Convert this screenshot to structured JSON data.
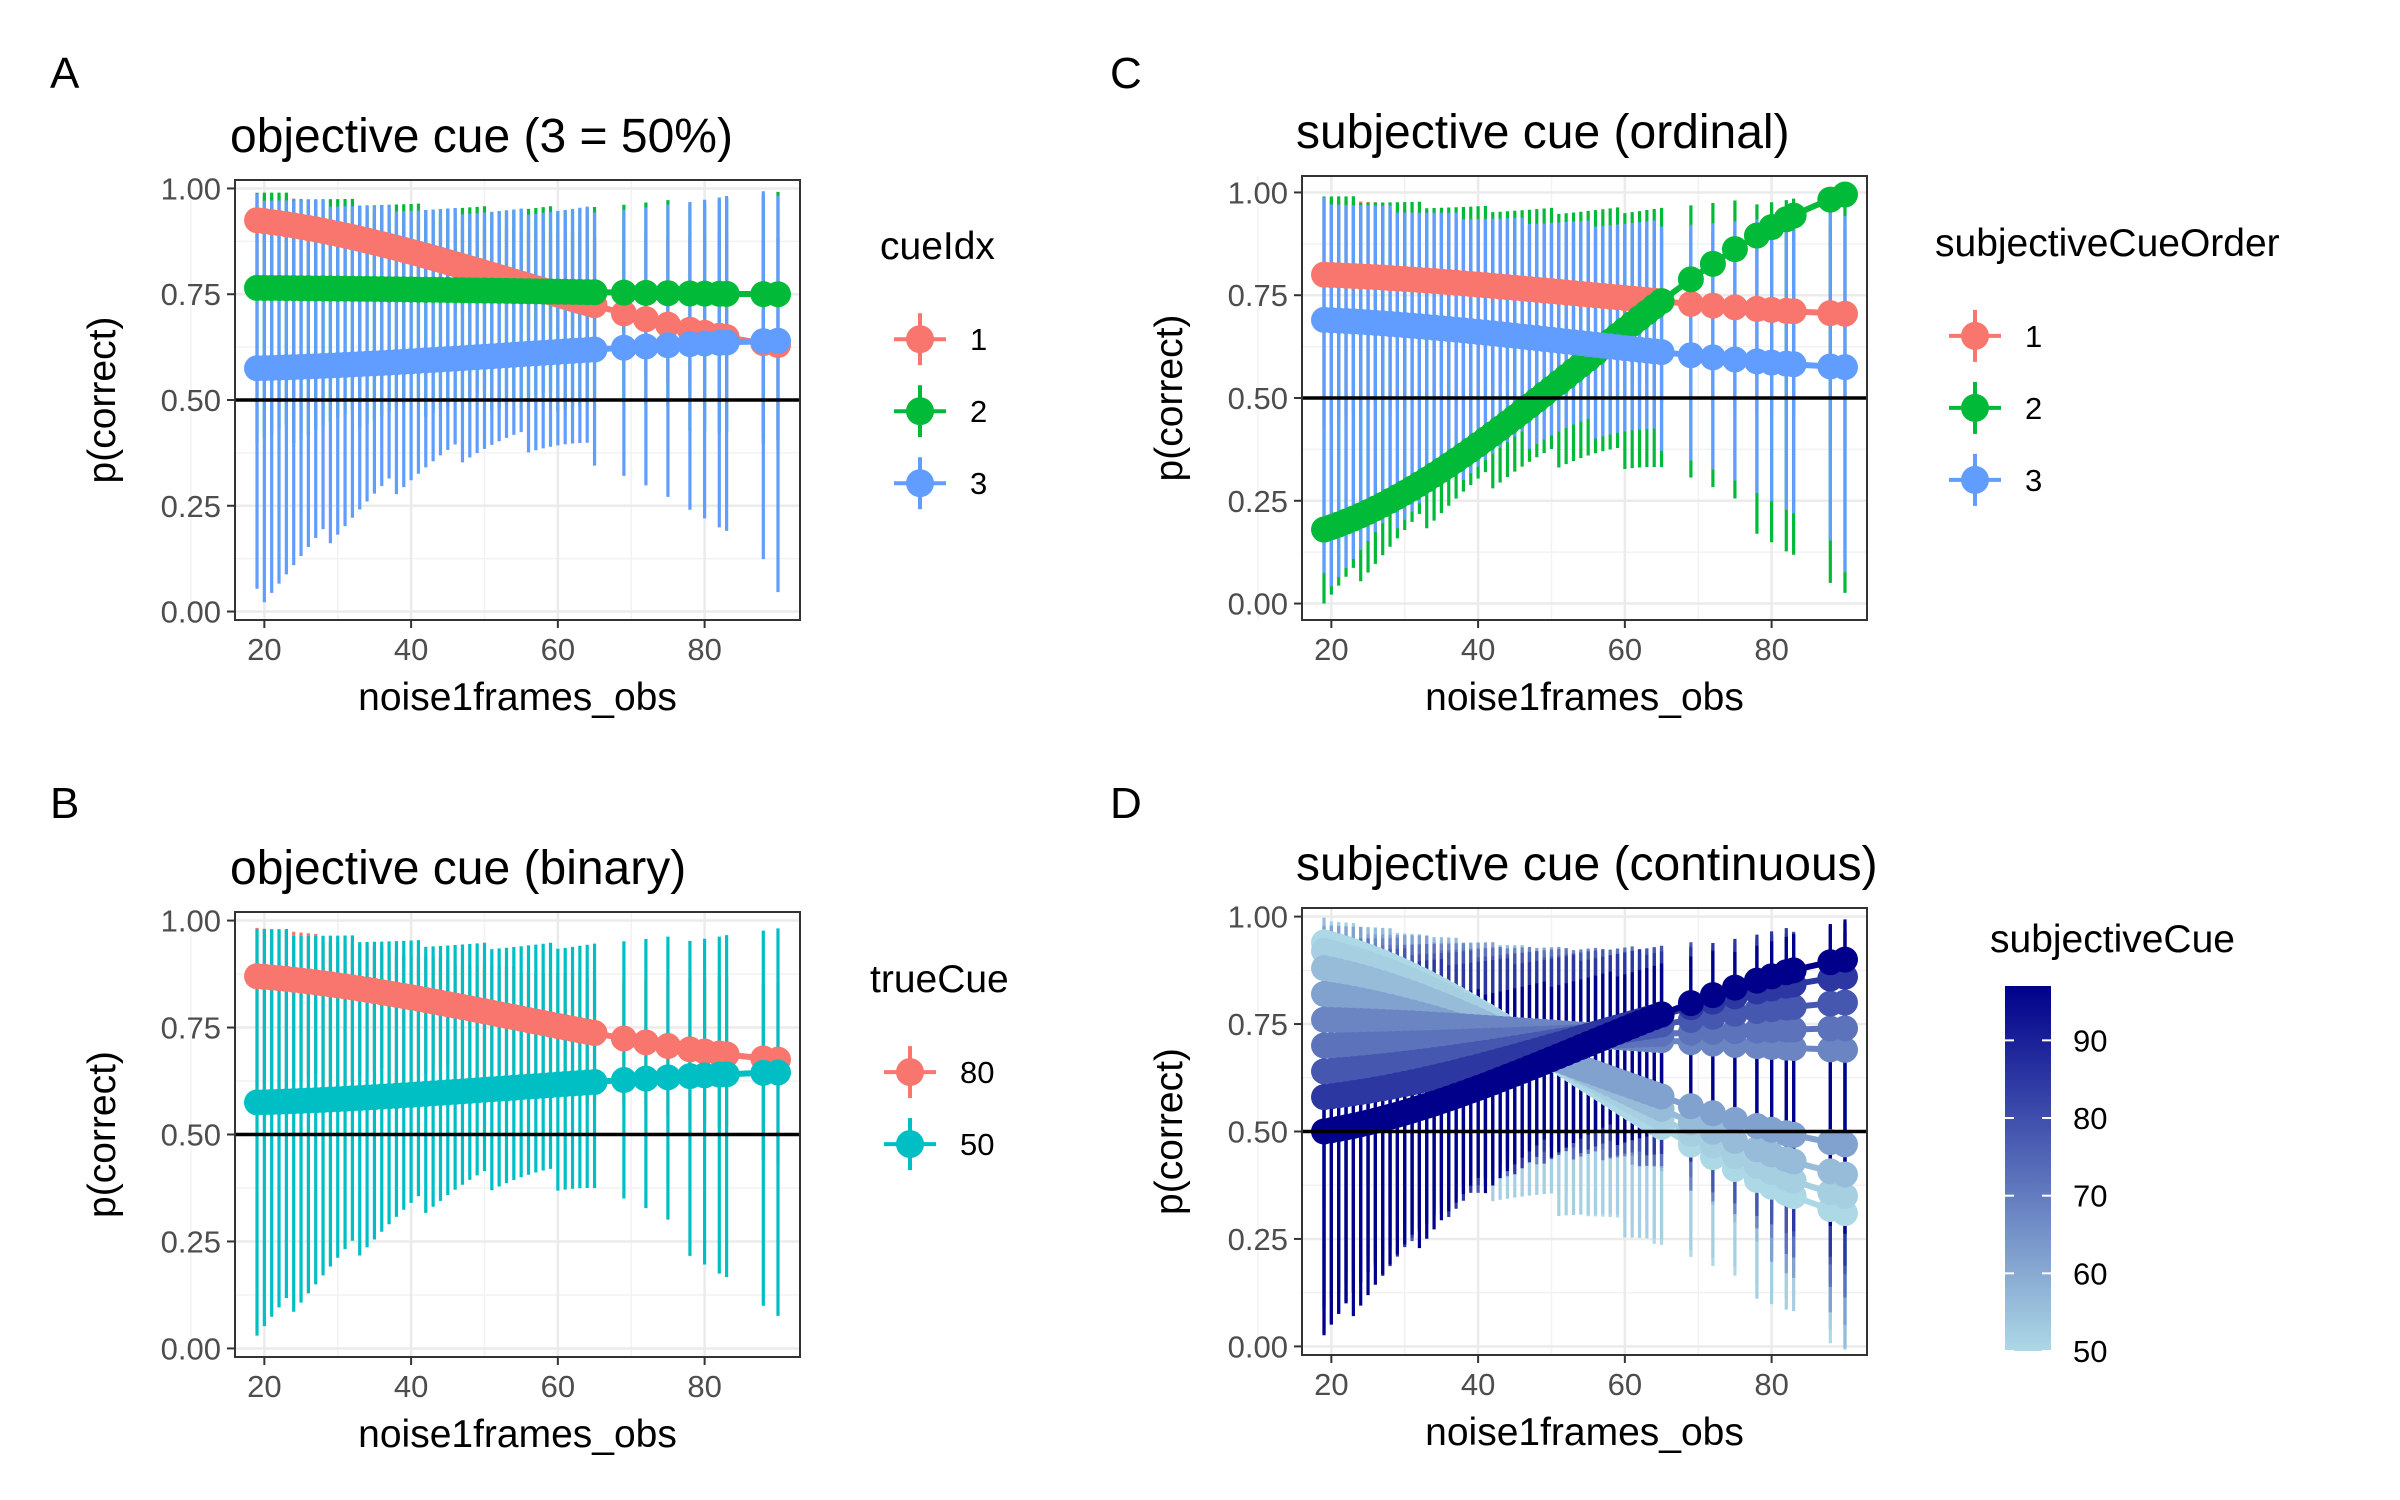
{
  "chart_data": [
    {
      "panel": "A",
      "type": "scatter",
      "title": "objective cue (3 = 50%)",
      "xlabel": "noise1frames_obs",
      "ylabel": "p(correct)",
      "xlim": [
        16,
        93
      ],
      "ylim": [
        -0.02,
        1.02
      ],
      "xticks": [
        20,
        40,
        60,
        80
      ],
      "yticks": [
        "0.00",
        "0.25",
        "0.50",
        "0.75",
        "1.00"
      ],
      "hline": 0.5,
      "x_observed": [
        19,
        90
      ],
      "grid": true,
      "legend": {
        "title": "cueIdx",
        "position": "right",
        "type": "discrete"
      },
      "series": [
        {
          "name": "1",
          "color": "#F8766D",
          "x_start": 19,
          "x_end": 90,
          "y_start": 0.925,
          "y_end": 0.63,
          "ci_upper_start": 0.99,
          "ci_upper_end": 0.89,
          "ci_lower_start": 0.78,
          "ci_lower_end": 0.4
        },
        {
          "name": "2",
          "color": "#00BA38",
          "x_start": 19,
          "x_end": 90,
          "y_start": 0.765,
          "y_end": 0.75,
          "ci_upper_start": 0.99,
          "ci_upper_end": 0.99,
          "ci_lower_start": 0.4,
          "ci_lower_end": 0.4
        },
        {
          "name": "3",
          "color": "#619CFF",
          "x_start": 19,
          "x_end": 90,
          "y_start": 0.575,
          "y_end": 0.64,
          "ci_upper_start": 0.98,
          "ci_upper_end": 0.99,
          "ci_lower_start": 0.03,
          "ci_lower_end": 0.07
        }
      ]
    },
    {
      "panel": "B",
      "type": "scatter",
      "title": "objective cue (binary)",
      "xlabel": "noise1frames_obs",
      "ylabel": "p(correct)",
      "xlim": [
        16,
        93
      ],
      "ylim": [
        -0.02,
        1.02
      ],
      "xticks": [
        20,
        40,
        60,
        80
      ],
      "yticks": [
        "0.00",
        "0.25",
        "0.50",
        "0.75",
        "1.00"
      ],
      "hline": 0.5,
      "x_observed": [
        19,
        90
      ],
      "grid": true,
      "legend": {
        "title": "trueCue",
        "position": "right",
        "type": "discrete"
      },
      "series": [
        {
          "name": "80",
          "color": "#F8766D",
          "x_start": 19,
          "x_end": 90,
          "y_start": 0.87,
          "y_end": 0.675,
          "ci_upper_start": 0.99,
          "ci_upper_end": 0.86,
          "ci_lower_start": 0.6,
          "ci_lower_end": 0.45
        },
        {
          "name": "50",
          "color": "#00BFC4",
          "x_start": 19,
          "x_end": 90,
          "y_start": 0.575,
          "y_end": 0.645,
          "ci_upper_start": 0.98,
          "ci_upper_end": 0.98,
          "ci_lower_start": 0.03,
          "ci_lower_end": 0.07
        }
      ]
    },
    {
      "panel": "C",
      "type": "scatter",
      "title": "subjective cue (ordinal)",
      "xlabel": "noise1frames_obs",
      "ylabel": "p(correct)",
      "xlim": [
        16,
        93
      ],
      "ylim": [
        -0.04,
        1.04
      ],
      "xticks": [
        20,
        40,
        60,
        80
      ],
      "yticks": [
        "0.00",
        "0.25",
        "0.50",
        "0.75",
        "1.00"
      ],
      "hline": 0.5,
      "x_observed": [
        19,
        90
      ],
      "grid": true,
      "legend": {
        "title": "subjectiveCueOrder",
        "position": "right",
        "type": "discrete"
      },
      "series": [
        {
          "name": "1",
          "color": "#F8766D",
          "x_start": 19,
          "x_end": 90,
          "y_start": 0.8,
          "y_end": 0.705,
          "ci_upper_start": 0.99,
          "ci_upper_end": 0.92,
          "ci_lower_start": 0.45,
          "ci_lower_end": 0.4
        },
        {
          "name": "2",
          "color": "#00BA38",
          "x_start": 19,
          "x_end": 90,
          "y_start": 0.18,
          "y_end": 0.995,
          "ci_upper_start": 0.99,
          "ci_upper_end": 1.0,
          "ci_lower_start": 0.0,
          "ci_lower_end": 0.02
        },
        {
          "name": "3",
          "color": "#619CFF",
          "x_start": 19,
          "x_end": 90,
          "y_start": 0.69,
          "y_end": 0.575,
          "ci_upper_start": 0.98,
          "ci_upper_end": 0.95,
          "ci_lower_start": 0.05,
          "ci_lower_end": 0.1
        }
      ]
    },
    {
      "panel": "D",
      "type": "scatter",
      "title": "subjective cue (continuous)",
      "xlabel": "noise1frames_obs",
      "ylabel": "p(correct)",
      "xlim": [
        16,
        93
      ],
      "ylim": [
        -0.02,
        1.02
      ],
      "xticks": [
        20,
        40,
        60,
        80
      ],
      "yticks": [
        "0.00",
        "0.25",
        "0.50",
        "0.75",
        "1.00"
      ],
      "hline": 0.5,
      "x_observed": [
        19,
        90
      ],
      "grid": true,
      "legend": {
        "title": "subjectiveCue",
        "position": "right",
        "type": "continuous",
        "range": [
          50,
          97
        ],
        "ticks": [
          50,
          60,
          70,
          80,
          90
        ],
        "color_low": "#ADD8E6",
        "color_high": "#00008B"
      },
      "series": [
        {
          "cue": 97,
          "x_start": 19,
          "x_end": 90,
          "y_start": 0.5,
          "y_end": 0.9,
          "ci_upper_start": 0.8,
          "ci_upper_end": 0.99,
          "ci_lower_start": 0.02,
          "ci_lower_end": 0.25
        },
        {
          "cue": 85,
          "x_start": 19,
          "x_end": 90,
          "y_start": 0.58,
          "y_end": 0.86,
          "ci_upper_start": 0.9,
          "ci_upper_end": 0.99,
          "ci_lower_start": 0.05,
          "ci_lower_end": 0.2
        },
        {
          "cue": 78,
          "x_start": 19,
          "x_end": 90,
          "y_start": 0.64,
          "y_end": 0.8,
          "ci_upper_start": 0.93,
          "ci_upper_end": 0.98,
          "ci_lower_start": 0.08,
          "ci_lower_end": 0.15
        },
        {
          "cue": 72,
          "x_start": 19,
          "x_end": 90,
          "y_start": 0.7,
          "y_end": 0.74,
          "ci_upper_start": 0.95,
          "ci_upper_end": 0.97,
          "ci_lower_start": 0.1,
          "ci_lower_end": 0.12
        },
        {
          "cue": 68,
          "x_start": 19,
          "x_end": 90,
          "y_start": 0.76,
          "y_end": 0.69,
          "ci_upper_start": 0.96,
          "ci_upper_end": 0.96,
          "ci_lower_start": 0.12,
          "ci_lower_end": 0.1
        },
        {
          "cue": 62,
          "x_start": 19,
          "x_end": 90,
          "y_start": 0.82,
          "y_end": 0.47,
          "ci_upper_start": 0.98,
          "ci_upper_end": 0.94,
          "ci_lower_start": 0.2,
          "ci_lower_end": 0.05
        },
        {
          "cue": 56,
          "x_start": 19,
          "x_end": 90,
          "y_start": 0.88,
          "y_end": 0.4,
          "ci_upper_start": 0.99,
          "ci_upper_end": 0.92,
          "ci_lower_start": 0.3,
          "ci_lower_end": 0.02
        },
        {
          "cue": 52,
          "x_start": 19,
          "x_end": 90,
          "y_start": 0.92,
          "y_end": 0.35,
          "ci_upper_start": 0.99,
          "ci_upper_end": 0.9,
          "ci_lower_start": 0.4,
          "ci_lower_end": 0.02
        },
        {
          "cue": 50,
          "x_start": 19,
          "x_end": 90,
          "y_start": 0.94,
          "y_end": 0.31,
          "ci_upper_start": 0.99,
          "ci_upper_end": 0.88,
          "ci_lower_start": 0.45,
          "ci_lower_end": 0.01
        }
      ]
    }
  ]
}
